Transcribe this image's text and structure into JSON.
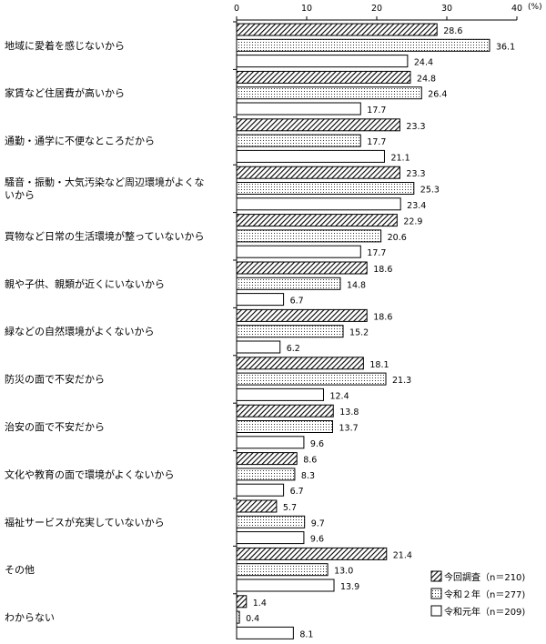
{
  "chart_data": {
    "type": "bar",
    "orientation": "horizontal",
    "unit": "(%)",
    "xlim": [
      0,
      40
    ],
    "x_ticks": [
      "0",
      "10",
      "20",
      "30",
      "40"
    ],
    "grid": false,
    "legend_position": "bottom-right",
    "categories": [
      [
        "地域に愛着を感じないから"
      ],
      [
        "家賃など住居費が高いから"
      ],
      [
        "通勤・通学に不便なところだから"
      ],
      [
        "騒音・振動・大気汚染など周辺環境がよくな",
        "いから"
      ],
      [
        "買物など日常の生活環境が整っていないから"
      ],
      [
        "親や子供、親類が近くにいないから"
      ],
      [
        "緑などの自然環境がよくないから"
      ],
      [
        "防災の面で不安だから"
      ],
      [
        "治安の面で不安だから"
      ],
      [
        "文化や教育の面で環境がよくないから"
      ],
      [
        "福祉サービスが充実していないから"
      ],
      [
        "その他"
      ],
      [
        "わからない"
      ]
    ],
    "series": [
      {
        "name": "今回調査（n＝210)",
        "pattern": "hatch",
        "values": [
          28.6,
          24.8,
          23.3,
          23.3,
          22.9,
          18.6,
          18.6,
          18.1,
          13.8,
          8.6,
          5.7,
          21.4,
          1.4
        ],
        "labels": [
          "28.6",
          "24.8",
          "23.3",
          "23.3",
          "22.9",
          "18.6",
          "18.6",
          "18.1",
          "13.8",
          "8.6",
          "5.7",
          "21.4",
          "1.4"
        ]
      },
      {
        "name": "令和２年（n＝277)",
        "pattern": "dots",
        "values": [
          36.1,
          26.4,
          17.7,
          25.3,
          20.6,
          14.8,
          15.2,
          21.3,
          13.7,
          8.3,
          9.7,
          13.0,
          0.4
        ],
        "labels": [
          "36.1",
          "26.4",
          "17.7",
          "25.3",
          "20.6",
          "14.8",
          "15.2",
          "21.3",
          "13.7",
          "8.3",
          "9.7",
          "13.0",
          "0.4"
        ]
      },
      {
        "name": "令和元年（n＝209)",
        "pattern": "none",
        "values": [
          24.4,
          17.7,
          21.1,
          23.4,
          17.7,
          6.7,
          6.2,
          12.4,
          9.6,
          6.7,
          9.6,
          13.9,
          8.1
        ],
        "labels": [
          "24.4",
          "17.7",
          "21.1",
          "23.4",
          "17.7",
          "6.7",
          "6.2",
          "12.4",
          "9.6",
          "6.7",
          "9.6",
          "13.9",
          "8.1"
        ]
      }
    ]
  }
}
